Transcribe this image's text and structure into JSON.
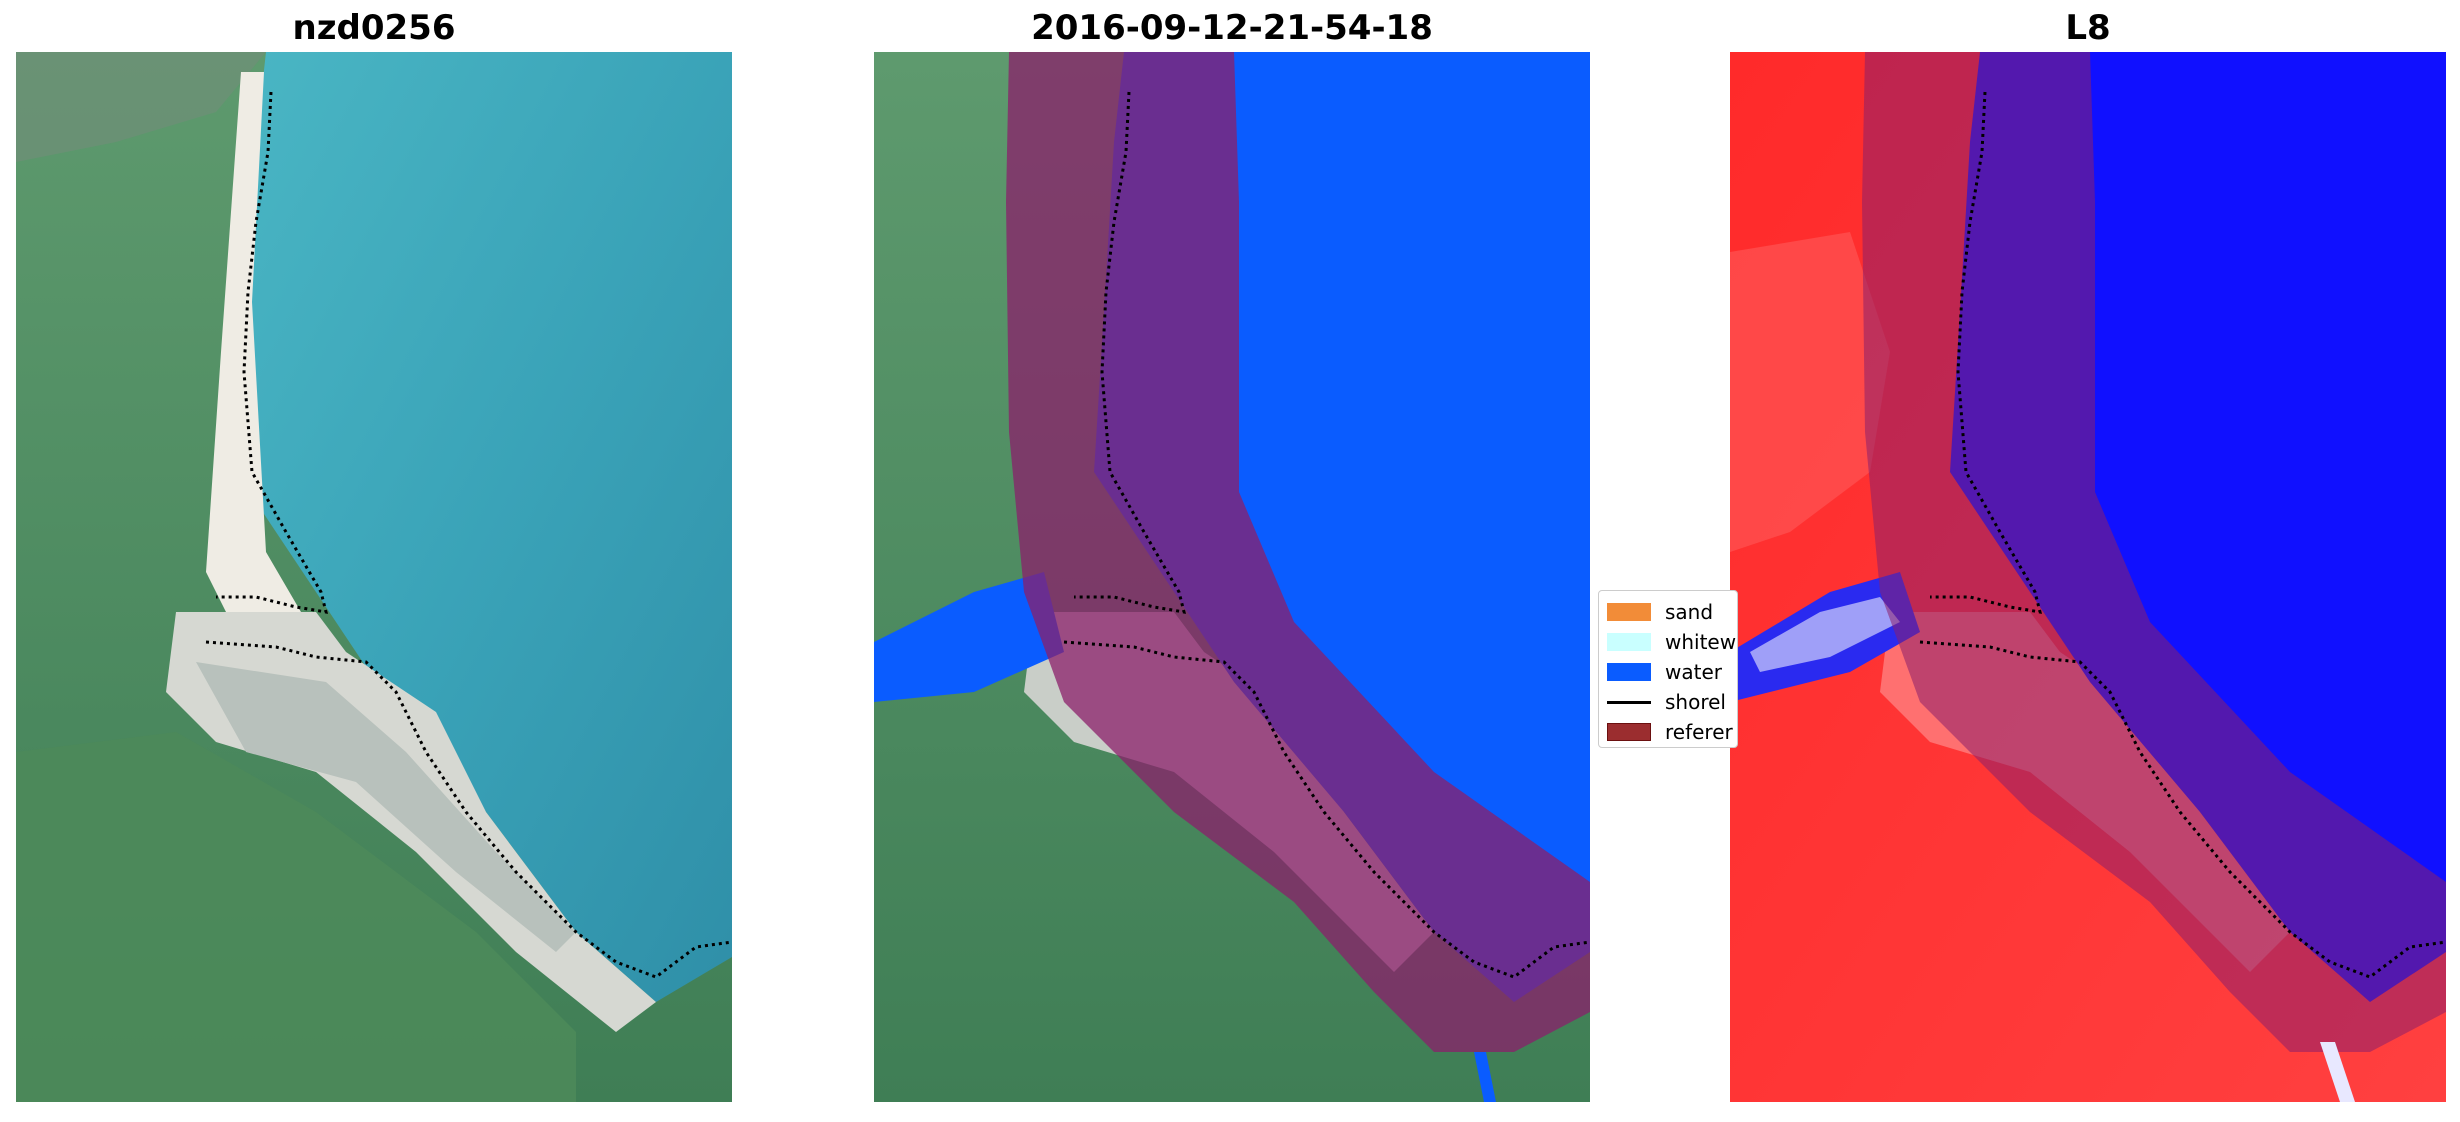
{
  "panels": [
    {
      "title": "nzd0256"
    },
    {
      "title": "2016-09-12-21-54-18"
    },
    {
      "title": "L8"
    }
  ],
  "legend": {
    "items": [
      {
        "label": "sand",
        "color": "#f28c38"
      },
      {
        "label": "whitew",
        "color": "#c9ffff"
      },
      {
        "label": "water",
        "color": "#0a5cff"
      },
      {
        "label": "shorel",
        "color": "#000000"
      },
      {
        "label": "referer",
        "color": "#9b2d2f"
      }
    ]
  },
  "colors": {
    "sea": "#3aa0b4",
    "land": "#4f8a62",
    "sand": "#e9e4d6",
    "water_class": "#0a5cff",
    "buffer": "#8b1f6b",
    "index_low": "#ff2a2a",
    "index_high": "#1010ff"
  }
}
